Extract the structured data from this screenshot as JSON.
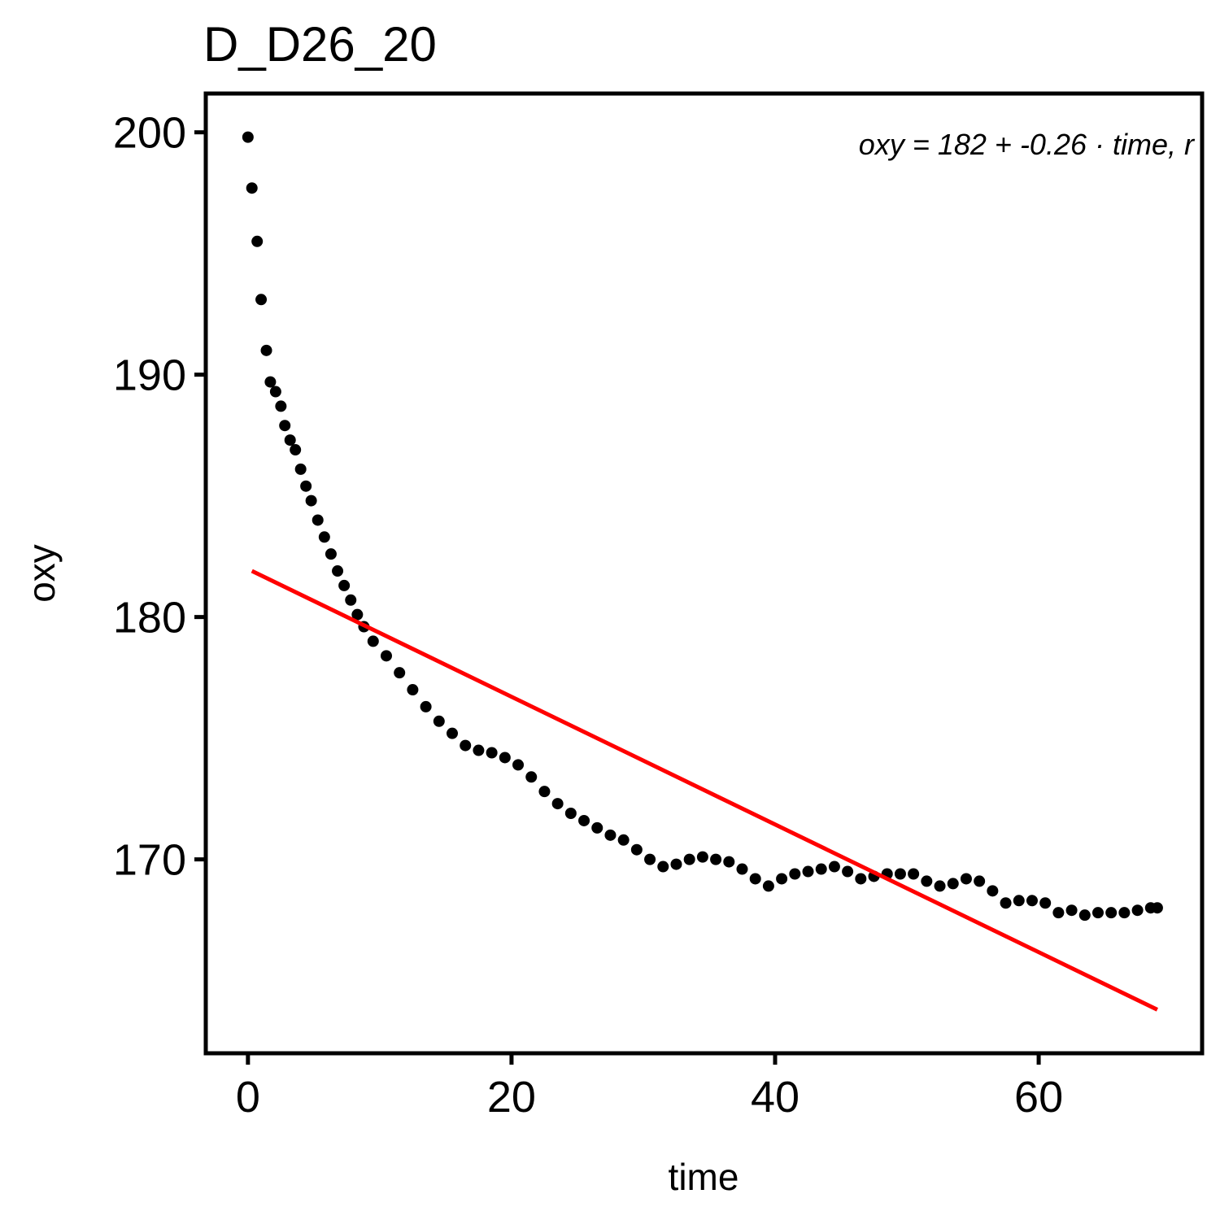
{
  "chart_data": {
    "type": "scatter",
    "title": "D_D26_20",
    "x_label": "time",
    "y_label": "oxy",
    "annotation": "oxy = 182 + -0.26 · time,  r",
    "xlim": [
      -3.2,
      72.4
    ],
    "ylim": [
      162.0,
      201.6
    ],
    "xticks": [
      0,
      20,
      40,
      60
    ],
    "yticks": [
      170,
      180,
      190,
      200
    ],
    "grid": false,
    "series": [
      {
        "name": "oxy",
        "color": "#000000",
        "x": [
          0,
          0.3,
          0.7,
          1.0,
          1.4,
          1.7,
          2.1,
          2.5,
          2.8,
          3.2,
          3.6,
          4.0,
          4.4,
          4.8,
          5.3,
          5.8,
          6.3,
          6.8,
          7.3,
          7.8,
          8.3,
          8.8,
          9.5,
          10.5,
          11.5,
          12.5,
          13.5,
          14.5,
          15.5,
          16.5,
          17.5,
          18.5,
          19.5,
          20.5,
          21.5,
          22.5,
          23.5,
          24.5,
          25.5,
          26.5,
          27.5,
          28.5,
          29.5,
          30.5,
          31.5,
          32.5,
          33.5,
          34.5,
          35.5,
          36.5,
          37.5,
          38.5,
          39.5,
          40.5,
          41.5,
          42.5,
          43.5,
          44.5,
          45.5,
          46.5,
          47.5,
          48.5,
          49.5,
          50.5,
          51.5,
          52.5,
          53.5,
          54.5,
          55.5,
          56.5,
          57.5,
          58.5,
          59.5,
          60.5,
          61.5,
          62.5,
          63.5,
          64.5,
          65.5,
          66.5,
          67.5,
          68.5,
          69
        ],
        "values": [
          199.8,
          197.7,
          195.5,
          193.1,
          191.0,
          189.7,
          189.3,
          188.7,
          187.9,
          187.3,
          186.9,
          186.1,
          185.4,
          184.8,
          184.0,
          183.3,
          182.6,
          181.9,
          181.3,
          180.7,
          180.1,
          179.6,
          179.0,
          178.4,
          177.7,
          177.0,
          176.3,
          175.7,
          175.2,
          174.7,
          174.5,
          174.4,
          174.2,
          173.9,
          173.4,
          172.8,
          172.3,
          171.9,
          171.6,
          171.3,
          171.0,
          170.8,
          170.4,
          170.0,
          169.7,
          169.8,
          170.0,
          170.1,
          170.0,
          169.9,
          169.6,
          169.2,
          168.9,
          169.2,
          169.4,
          169.5,
          169.6,
          169.7,
          169.5,
          169.2,
          169.3,
          169.4,
          169.4,
          169.4,
          169.1,
          168.9,
          169.0,
          169.2,
          169.1,
          168.7,
          168.2,
          168.3,
          168.3,
          168.2,
          167.8,
          167.9,
          167.7,
          167.8,
          167.8,
          167.8,
          167.9,
          168.0,
          168.0
        ]
      },
      {
        "name": "fit",
        "color": "#ff0000",
        "x": [
          0.3,
          69
        ],
        "values": [
          181.9,
          163.8
        ]
      }
    ]
  }
}
